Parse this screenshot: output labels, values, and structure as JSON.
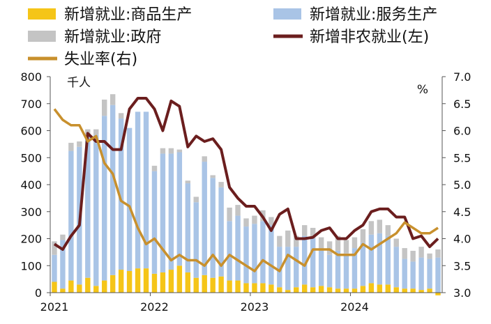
{
  "chart_data": {
    "type": "bar+line",
    "legend": [
      {
        "key": "goods",
        "label": "新增就业:商品生产",
        "kind": "bar",
        "color": "#f5c518"
      },
      {
        "key": "services",
        "label": "新增就业:服务生产",
        "kind": "bar",
        "color": "#a9c4e6"
      },
      {
        "key": "government",
        "label": "新增就业:政府",
        "kind": "bar",
        "color": "#c4c4c4"
      },
      {
        "key": "nonfarm",
        "label": "新增非农就业(左)",
        "kind": "line",
        "color": "#6b1e1e"
      },
      {
        "key": "unemployment",
        "label": "失业率(右)",
        "kind": "line",
        "color": "#c8902d"
      }
    ],
    "legend_position": "top",
    "left_axis": {
      "unit_label": "千人",
      "ticks": [
        0,
        100,
        200,
        300,
        400,
        500,
        600,
        700,
        800
      ],
      "range": [
        0,
        800
      ]
    },
    "right_axis": {
      "unit_label": "%",
      "ticks": [
        "3.0",
        "3.5",
        "4.0",
        "4.5",
        "5.0",
        "5.5",
        "6.0",
        "6.5",
        "7.0"
      ],
      "range": [
        3.0,
        7.0
      ]
    },
    "x_ticks": [
      {
        "label": "2021",
        "index": 0
      },
      {
        "label": "2022",
        "index": 12
      },
      {
        "label": "2023",
        "index": 24
      },
      {
        "label": "2024",
        "index": 36
      }
    ],
    "grid": false,
    "months": [
      "2021-01",
      "2021-02",
      "2021-03",
      "2021-04",
      "2021-05",
      "2021-06",
      "2021-07",
      "2021-08",
      "2021-09",
      "2021-10",
      "2021-11",
      "2021-12",
      "2022-01",
      "2022-02",
      "2022-03",
      "2022-04",
      "2022-05",
      "2022-06",
      "2022-07",
      "2022-08",
      "2022-09",
      "2022-10",
      "2022-11",
      "2022-12",
      "2023-01",
      "2023-02",
      "2023-03",
      "2023-04",
      "2023-05",
      "2023-06",
      "2023-07",
      "2023-08",
      "2023-09",
      "2023-10",
      "2023-11",
      "2023-12",
      "2024-01",
      "2024-02",
      "2024-03",
      "2024-04",
      "2024-05",
      "2024-06",
      "2024-07",
      "2024-08",
      "2024-09",
      "2024-10",
      "2024-11"
    ],
    "series": {
      "goods": [
        40,
        15,
        45,
        30,
        55,
        25,
        45,
        65,
        85,
        80,
        90,
        90,
        70,
        75,
        85,
        100,
        75,
        55,
        65,
        55,
        60,
        45,
        45,
        35,
        35,
        35,
        30,
        20,
        10,
        20,
        30,
        20,
        25,
        20,
        15,
        15,
        15,
        25,
        35,
        30,
        30,
        20,
        15,
        15,
        10,
        15,
        -10
      ],
      "services": [
        100,
        180,
        480,
        510,
        520,
        560,
        610,
        630,
        560,
        530,
        580,
        580,
        380,
        440,
        430,
        420,
        330,
        280,
        420,
        370,
        330,
        220,
        240,
        210,
        220,
        230,
        220,
        150,
        160,
        150,
        180,
        180,
        130,
        120,
        140,
        130,
        150,
        160,
        180,
        190,
        180,
        150,
        110,
        100,
        120,
        110,
        130
      ],
      "government": [
        50,
        20,
        30,
        20,
        30,
        20,
        60,
        40,
        20,
        0,
        0,
        0,
        20,
        20,
        20,
        10,
        10,
        20,
        20,
        10,
        20,
        50,
        40,
        30,
        30,
        40,
        30,
        40,
        60,
        40,
        40,
        40,
        50,
        50,
        55,
        50,
        40,
        50,
        50,
        50,
        40,
        30,
        40,
        40,
        40,
        20,
        30
      ],
      "nonfarm": [
        180,
        160,
        210,
        250,
        590,
        560,
        560,
        530,
        530,
        680,
        720,
        720,
        680,
        600,
        710,
        690,
        540,
        580,
        560,
        570,
        530,
        390,
        350,
        320,
        320,
        280,
        230,
        290,
        310,
        200,
        200,
        205,
        230,
        240,
        200,
        200,
        230,
        250,
        300,
        310,
        310,
        280,
        280,
        200,
        210,
        170,
        200
      ],
      "unemployment": [
        6.4,
        6.2,
        6.1,
        6.1,
        5.8,
        5.9,
        5.4,
        5.2,
        4.7,
        4.6,
        4.2,
        3.9,
        4.0,
        3.8,
        3.6,
        3.7,
        3.6,
        3.6,
        3.5,
        3.7,
        3.5,
        3.7,
        3.6,
        3.5,
        3.4,
        3.6,
        3.5,
        3.4,
        3.7,
        3.6,
        3.5,
        3.8,
        3.8,
        3.8,
        3.7,
        3.7,
        3.7,
        3.9,
        3.8,
        3.9,
        4.0,
        4.1,
        4.3,
        4.2,
        4.1,
        4.1,
        4.2
      ]
    }
  }
}
